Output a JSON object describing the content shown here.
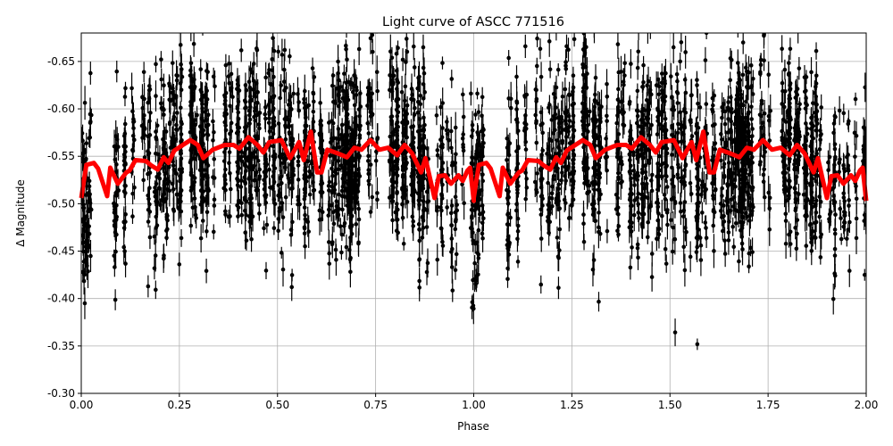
{
  "chart_data": {
    "type": "scatter",
    "title": "Light curve of ASCC 771516",
    "xlabel": "Phase",
    "ylabel": "Δ Magnitude",
    "xlim": [
      0.0,
      2.0
    ],
    "ylim": [
      -0.3,
      -0.68
    ],
    "y_inverted": true,
    "grid": true,
    "xticks": [
      "0.00",
      "0.25",
      "0.50",
      "0.75",
      "1.00",
      "1.25",
      "1.50",
      "1.75",
      "2.00"
    ],
    "yticks": [
      "-0.65",
      "-0.60",
      "-0.55",
      "-0.50",
      "-0.45",
      "-0.40",
      "-0.35",
      "-0.30"
    ],
    "scatter_color": "#000000",
    "series": [
      {
        "kind": "binned-curve",
        "color": "#ff0000",
        "repeat_period": 1.0,
        "phase": [
          0.0,
          0.013,
          0.032,
          0.043,
          0.066,
          0.074,
          0.093,
          0.115,
          0.123,
          0.138,
          0.165,
          0.176,
          0.195,
          0.21,
          0.222,
          0.237,
          0.259,
          0.278,
          0.297,
          0.311,
          0.335,
          0.366,
          0.388,
          0.403,
          0.426,
          0.449,
          0.464,
          0.479,
          0.51,
          0.532,
          0.555,
          0.567,
          0.585,
          0.601,
          0.612,
          0.627,
          0.654,
          0.677,
          0.696,
          0.714,
          0.737,
          0.76,
          0.782,
          0.805,
          0.824,
          0.843,
          0.866,
          0.877,
          0.9,
          0.911,
          0.927,
          0.942,
          0.961,
          0.972,
          0.984,
          0.991,
          1.0
        ],
        "magnitude": [
          -0.506,
          -0.541,
          -0.543,
          -0.537,
          -0.508,
          -0.538,
          -0.521,
          -0.533,
          -0.535,
          -0.546,
          -0.545,
          -0.541,
          -0.536,
          -0.549,
          -0.543,
          -0.556,
          -0.562,
          -0.567,
          -0.562,
          -0.548,
          -0.557,
          -0.562,
          -0.562,
          -0.558,
          -0.57,
          -0.562,
          -0.554,
          -0.565,
          -0.567,
          -0.548,
          -0.565,
          -0.546,
          -0.576,
          -0.533,
          -0.533,
          -0.557,
          -0.553,
          -0.549,
          -0.559,
          -0.557,
          -0.567,
          -0.557,
          -0.559,
          -0.551,
          -0.562,
          -0.553,
          -0.533,
          -0.548,
          -0.506,
          -0.529,
          -0.53,
          -0.521,
          -0.53,
          -0.524,
          -0.535,
          -0.538,
          -0.503
        ]
      }
    ]
  }
}
